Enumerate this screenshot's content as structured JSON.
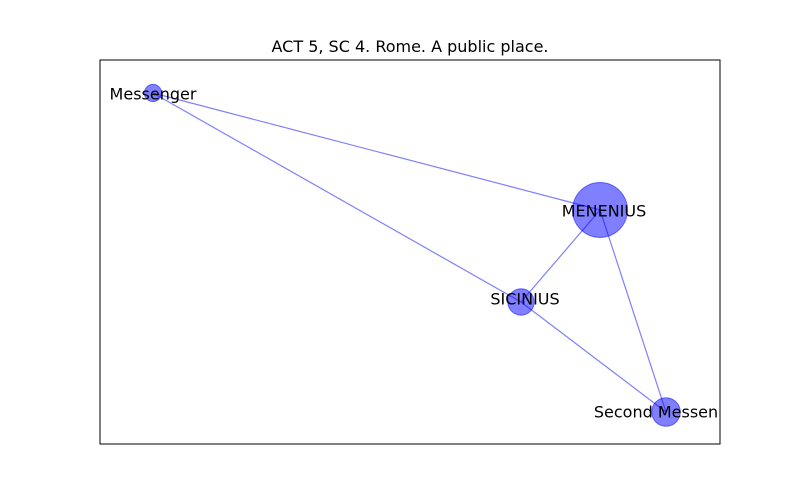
{
  "title": "ACT 5, SC 4. Rome. A public place.",
  "colors": {
    "node_fill": "#0000ff",
    "edge": "#0000ff",
    "frame": "#000000",
    "label": "#000000"
  },
  "nodes": [
    {
      "id": "messenger",
      "label": "Messenger",
      "weight": 1
    },
    {
      "id": "menenius",
      "label": "MENENIUS",
      "weight": 26
    },
    {
      "id": "sicinius",
      "label": "SICINIUS",
      "weight": 4
    },
    {
      "id": "second-messenger",
      "label": "Second Messen",
      "weight": 5
    }
  ],
  "edges": [
    {
      "source": "messenger",
      "target": "menenius"
    },
    {
      "source": "messenger",
      "target": "sicinius"
    },
    {
      "source": "menenius",
      "target": "sicinius"
    },
    {
      "source": "menenius",
      "target": "second-messenger"
    },
    {
      "source": "sicinius",
      "target": "second-messenger"
    }
  ]
}
